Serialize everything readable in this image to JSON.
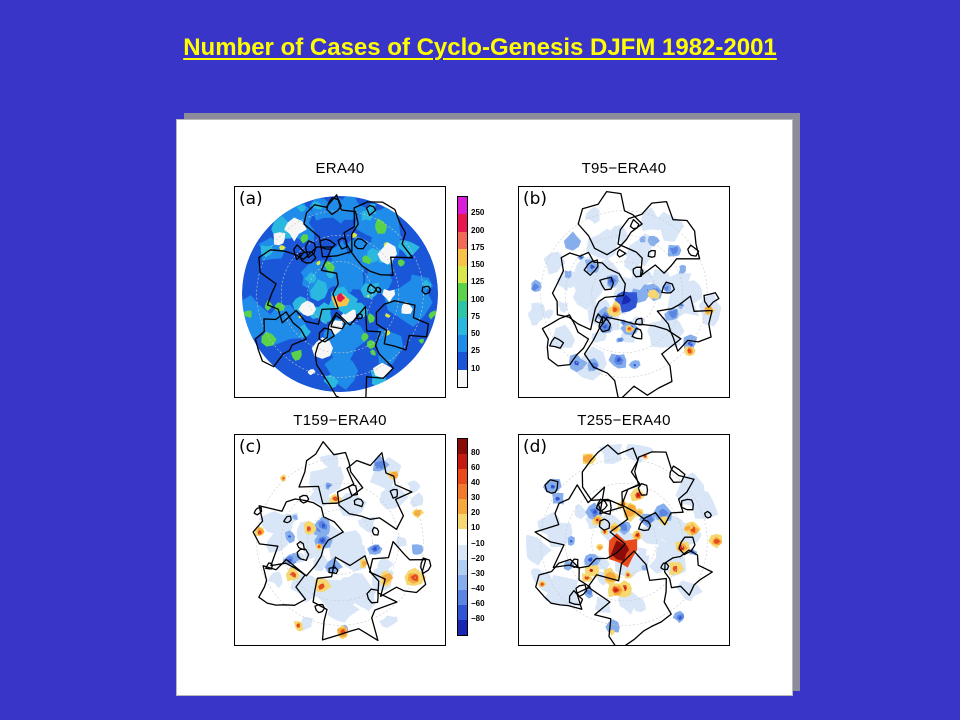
{
  "slide": {
    "title": "Number of Cases of Cyclo-Genesis DJFM 1982-2001"
  },
  "panels": [
    {
      "id": "a",
      "title": "ERA40",
      "letter": "(a)",
      "field": "absolute"
    },
    {
      "id": "b",
      "title": "T95−ERA40",
      "letter": "(b)",
      "field": "difference"
    },
    {
      "id": "c",
      "title": "T159−ERA40",
      "letter": "(c)",
      "field": "difference"
    },
    {
      "id": "d",
      "title": "T255−ERA40",
      "letter": "(d)",
      "field": "difference"
    }
  ],
  "colorbars": {
    "absolute": {
      "labels": [
        "250",
        "200",
        "175",
        "150",
        "125",
        "100",
        "75",
        "50",
        "25",
        "10"
      ],
      "colors": [
        "#d81fd8",
        "#e8174e",
        "#f06a56",
        "#f6c24a",
        "#d8e84a",
        "#5ad34a",
        "#2dc5a8",
        "#2ab8e0",
        "#1e8ce8",
        "#1a56d8",
        "#f6f6f6"
      ]
    },
    "difference": {
      "labels": [
        "80",
        "60",
        "40",
        "30",
        "20",
        "10",
        "−10",
        "−20",
        "−30",
        "−40",
        "−60",
        "−80"
      ],
      "colors": [
        "#8a0c08",
        "#c51a10",
        "#e84a1c",
        "#f27a2c",
        "#f6a83c",
        "#f7d870",
        "#ffffff",
        "#d8e6f8",
        "#b0cdf2",
        "#86aeec",
        "#5a86e2",
        "#2f54d4",
        "#1826b4"
      ]
    }
  }
}
